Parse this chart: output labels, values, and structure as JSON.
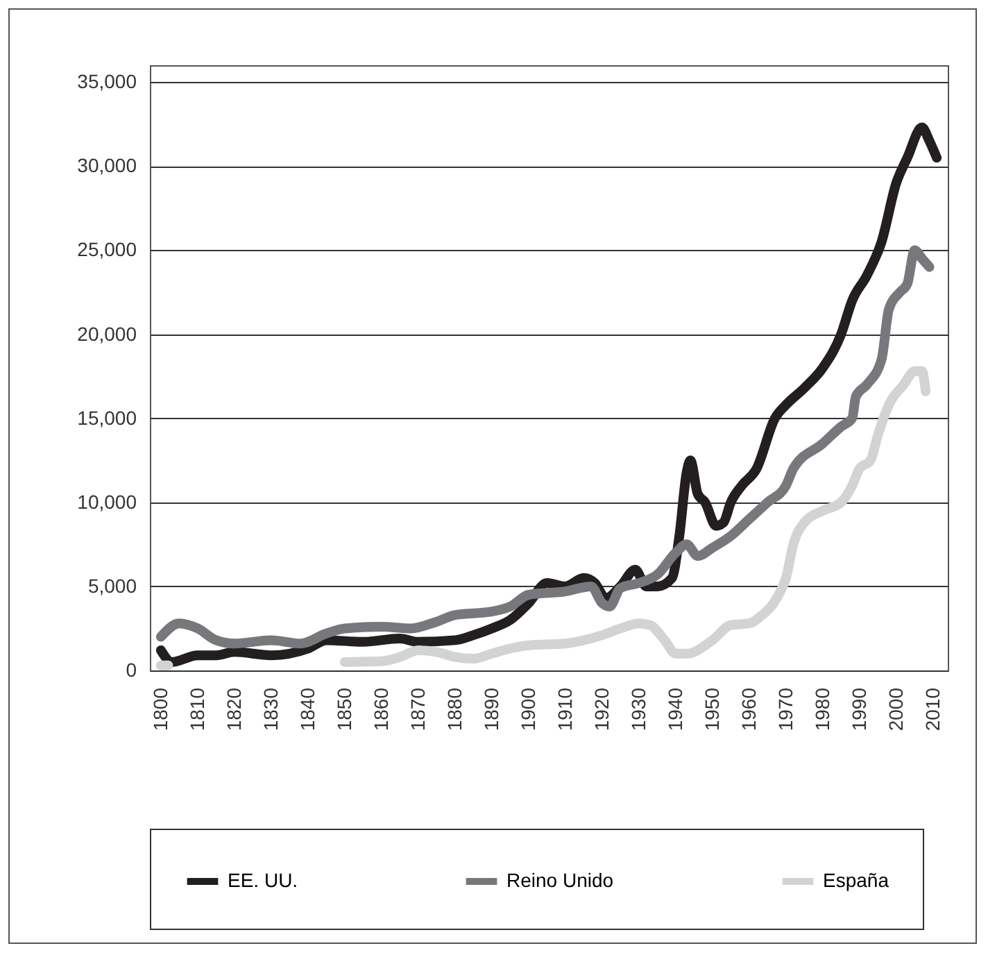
{
  "chart_data": {
    "type": "line",
    "xlim": [
      1797,
      2014
    ],
    "ylim": [
      0,
      36000
    ],
    "xticks": [
      1800,
      1810,
      1820,
      1830,
      1840,
      1850,
      1860,
      1870,
      1880,
      1890,
      1900,
      1910,
      1920,
      1930,
      1940,
      1950,
      1960,
      1970,
      1980,
      1990,
      2000,
      2010
    ],
    "yticks": [
      {
        "value": 0,
        "label": "0"
      },
      {
        "value": 5000,
        "label": "5,000"
      },
      {
        "value": 10000,
        "label": "10,000"
      },
      {
        "value": 15000,
        "label": "15,000"
      },
      {
        "value": 20000,
        "label": "20,000"
      },
      {
        "value": 25000,
        "label": "25,000"
      },
      {
        "value": 30000,
        "label": "30,000"
      },
      {
        "value": 35000,
        "label": "35,000"
      }
    ],
    "grid": "y",
    "legend": "bottom",
    "line_style": "solid",
    "marker": "none",
    "series": [
      {
        "name": "EE. UU.",
        "color": "#231f20",
        "x": [
          1800,
          1803,
          1810,
          1815,
          1820,
          1830,
          1840,
          1845,
          1855,
          1865,
          1870,
          1880,
          1885,
          1890,
          1895,
          1900,
          1905,
          1910,
          1915,
          1918,
          1921,
          1925,
          1929,
          1932,
          1935,
          1939,
          1941,
          1943,
          1944,
          1946,
          1948,
          1951,
          1953,
          1955,
          1958,
          1962,
          1967,
          1970,
          1975,
          1980,
          1985,
          1988,
          1992,
          1996,
          2000,
          2003,
          2007,
          2009,
          2011
        ],
        "values": [
          1200,
          500,
          900,
          900,
          1100,
          900,
          1300,
          1800,
          1700,
          1900,
          1700,
          1800,
          2100,
          2500,
          3000,
          4000,
          5200,
          5000,
          5500,
          5200,
          4300,
          5000,
          6000,
          5000,
          5000,
          5500,
          8000,
          11800,
          12500,
          10500,
          10000,
          8600,
          8800,
          10000,
          11000,
          12000,
          15000,
          15800,
          16800,
          18000,
          20000,
          22000,
          23500,
          25500,
          29000,
          30500,
          32300,
          31500,
          30500
        ]
      },
      {
        "name": "Reino Unido",
        "color": "#77787b",
        "x": [
          1800,
          1805,
          1810,
          1815,
          1820,
          1830,
          1838,
          1845,
          1850,
          1860,
          1868,
          1875,
          1880,
          1890,
          1895,
          1900,
          1910,
          1917,
          1920,
          1922,
          1925,
          1930,
          1935,
          1940,
          1943,
          1946,
          1950,
          1955,
          1960,
          1965,
          1970,
          1972,
          1980,
          1985,
          1988,
          1989,
          1992,
          1996,
          1998,
          2001,
          2003,
          2005,
          2007,
          2009
        ],
        "values": [
          2000,
          2800,
          2500,
          1800,
          1600,
          1800,
          1600,
          2200,
          2500,
          2600,
          2500,
          2900,
          3300,
          3500,
          3800,
          4500,
          4700,
          5000,
          4000,
          3800,
          4900,
          5200,
          5700,
          7000,
          7500,
          6800,
          7300,
          8000,
          9000,
          10000,
          11000,
          12000,
          13500,
          14500,
          15000,
          16300,
          17000,
          18500,
          21500,
          22500,
          23000,
          25000,
          24500,
          24000
        ]
      },
      {
        "name": "España",
        "color": "#d1d3d4",
        "x": [
          1800,
          1802,
          1820,
          1850,
          1860,
          1865,
          1870,
          1875,
          1880,
          1885,
          1890,
          1895,
          1900,
          1910,
          1920,
          1925,
          1930,
          1933,
          1937,
          1940,
          1943,
          1950,
          1955,
          1960,
          1963,
          1968,
          1970,
          1972,
          1975,
          1980,
          1985,
          1988,
          1990,
          1993,
          1995,
          1998,
          2002,
          2005,
          2007,
          2008
        ],
        "values": [
          300,
          300,
          null,
          500,
          550,
          800,
          1200,
          1100,
          800,
          700,
          1000,
          1300,
          1500,
          1600,
          2100,
          2500,
          2800,
          2700,
          1800,
          1000,
          1000,
          1800,
          2700,
          2800,
          3200,
          4500,
          5500,
          7500,
          8800,
          9500,
          10000,
          11000,
          12000,
          12500,
          14000,
          15800,
          17000,
          17800,
          17800,
          16600
        ]
      }
    ]
  }
}
